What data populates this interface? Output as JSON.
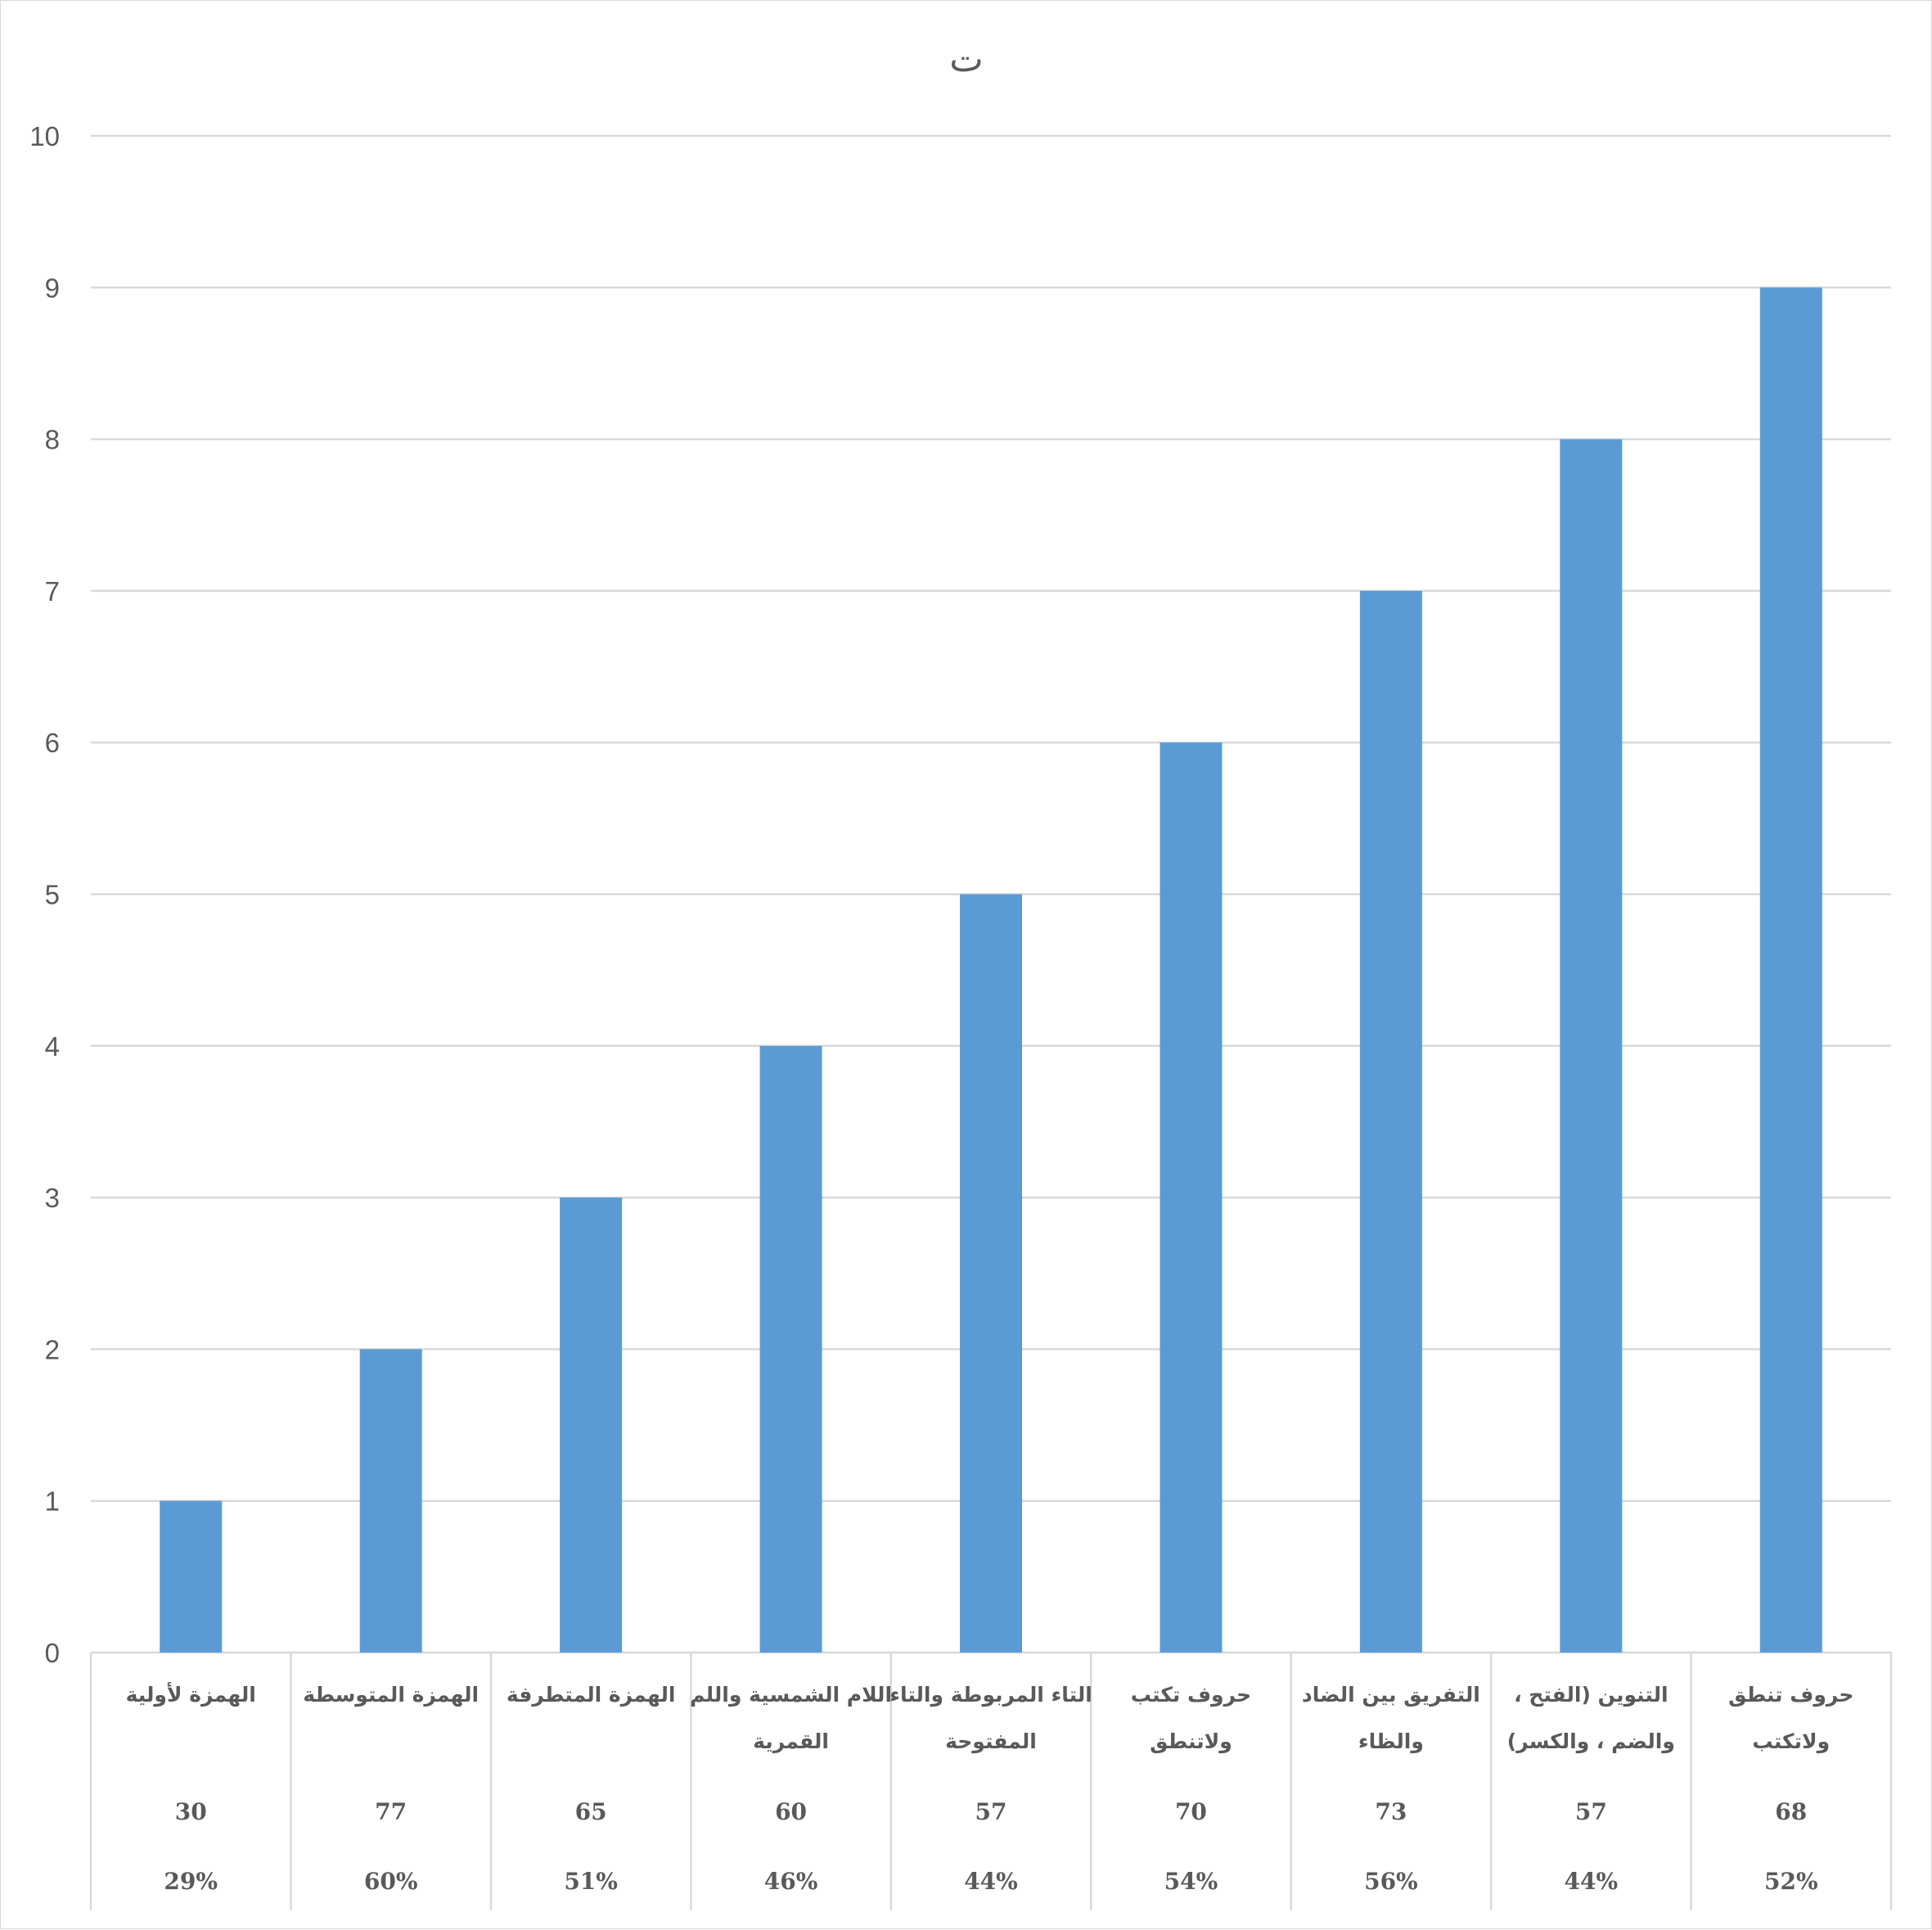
{
  "chart_data": {
    "type": "bar",
    "title": "ت",
    "xlabel": "",
    "ylabel": "",
    "ylim": [
      0,
      10
    ],
    "yticks": [
      0,
      1,
      2,
      3,
      4,
      5,
      6,
      7,
      8,
      9,
      10
    ],
    "grid": true,
    "bar_color": "#5b9bd5",
    "categories": [
      [
        "الهمزة لأولية"
      ],
      [
        "الهمزة المتوسطة"
      ],
      [
        "الهمزة المتطرفة"
      ],
      [
        "اللام الشمسية واللم",
        "القمرية"
      ],
      [
        "التاء المربوطة والتاء",
        "المفتوحة"
      ],
      [
        "حروف تكتب",
        "ولاتنطق"
      ],
      [
        "التفريق بين الضاد",
        "والظاء"
      ],
      [
        "التنوين (الفتح ،",
        "والضم ، والكسر)"
      ],
      [
        "حروف تنطق",
        "ولاتكتب"
      ]
    ],
    "values": [
      1,
      2,
      3,
      4,
      5,
      6,
      7,
      8,
      9
    ],
    "table_rows": [
      [
        "30",
        "77",
        "65",
        "60",
        "57",
        "70",
        "73",
        "57",
        "68"
      ],
      [
        "29%",
        "60%",
        "51%",
        "46%",
        "44%",
        "54%",
        "56%",
        "44%",
        "52%"
      ]
    ]
  }
}
